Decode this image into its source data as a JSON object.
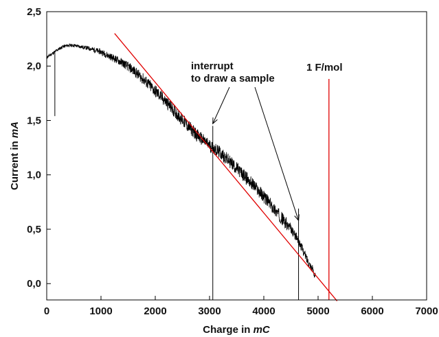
{
  "chart_data": {
    "type": "line",
    "title": "",
    "xlabel_text": "Charge in ",
    "xlabel_unit": "mC",
    "ylabel_text": "Current in ",
    "ylabel_unit": "mA",
    "xlim": [
      0,
      7000
    ],
    "ylim": [
      -0.15,
      2.5
    ],
    "x_ticks": [
      0,
      1000,
      2000,
      3000,
      4000,
      5000,
      6000,
      7000
    ],
    "x_tick_labels": [
      "0",
      "1000",
      "2000",
      "3000",
      "4000",
      "5000",
      "6000",
      "7000"
    ],
    "y_ticks": [
      0.0,
      0.5,
      1.0,
      1.5,
      2.0,
      2.5
    ],
    "y_tick_labels": [
      "0,0",
      "0,5",
      "1,0",
      "1,5",
      "2,0",
      "2,5"
    ],
    "grid": false,
    "colors": {
      "data": "#000000",
      "fit": "#e00000",
      "axis": "#000000"
    },
    "series": [
      {
        "style": "noisy-black-trace",
        "x": [
          0,
          60,
          120,
          150,
          200,
          300,
          400,
          500,
          600,
          800,
          1000,
          1200,
          1400,
          1600,
          1800,
          2000,
          2200,
          2400,
          2600,
          2800,
          3000,
          3200,
          3400,
          3600,
          3800,
          4000,
          4200,
          4400,
          4600,
          4700,
          4800,
          4900,
          4950
        ],
        "y": [
          2.08,
          2.1,
          2.12,
          2.13,
          2.15,
          2.18,
          2.19,
          2.19,
          2.18,
          2.16,
          2.13,
          2.08,
          2.03,
          1.96,
          1.87,
          1.77,
          1.67,
          1.56,
          1.45,
          1.35,
          1.27,
          1.2,
          1.11,
          1.01,
          0.91,
          0.8,
          0.68,
          0.56,
          0.43,
          0.33,
          0.22,
          0.13,
          0.07
        ],
        "dropouts": [
          {
            "x": 150,
            "from": 2.13,
            "to": 1.54
          },
          {
            "x": 3060,
            "from": 1.45,
            "to": -0.15
          },
          {
            "x": 4640,
            "from": 0.69,
            "to": -0.15
          }
        ]
      },
      {
        "style": "red-fit-line",
        "x": [
          1250,
          5350
        ],
        "y": [
          2.3,
          -0.16
        ]
      }
    ],
    "reference_lines": [
      {
        "x": 5200,
        "label": "1 F/mol"
      }
    ],
    "annotations": [
      {
        "line1": "interrupt",
        "line2": "to draw a sample",
        "arrow_targets": [
          [
            3060,
            1.47
          ],
          [
            4640,
            0.58
          ]
        ]
      }
    ]
  }
}
